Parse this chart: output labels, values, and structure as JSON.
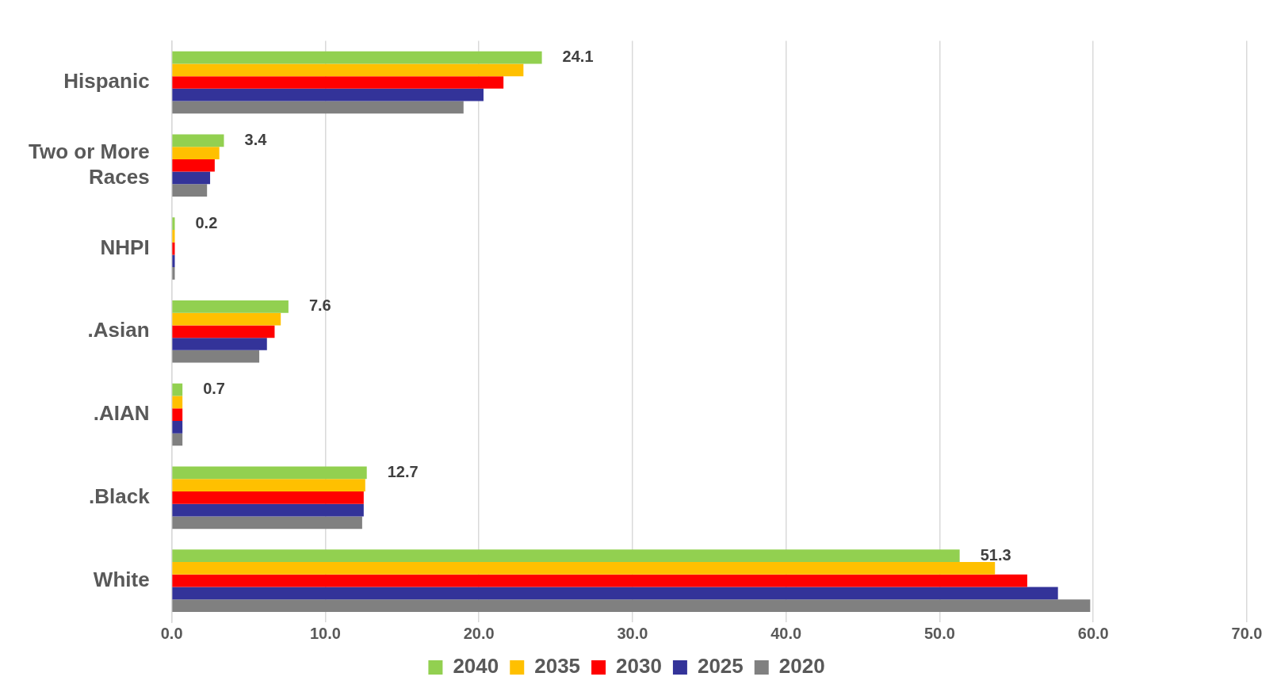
{
  "chart_data": {
    "type": "bar",
    "orientation": "horizontal",
    "categories": [
      "Hispanic",
      "Two or More Races",
      "NHPI",
      ".Asian",
      ".AIAN",
      ".Black",
      "White"
    ],
    "series": [
      {
        "name": "2040",
        "color": "#92d050",
        "values": [
          24.1,
          3.4,
          0.2,
          7.6,
          0.7,
          12.7,
          51.3
        ],
        "value_labels": [
          "24.1",
          "3.4",
          "0.2",
          "7.6",
          "0.7",
          "12.7",
          "51.3"
        ]
      },
      {
        "name": "2035",
        "color": "#ffc000",
        "values": [
          22.9,
          3.1,
          0.2,
          7.1,
          0.7,
          12.6,
          53.6
        ]
      },
      {
        "name": "2030",
        "color": "#ff0000",
        "values": [
          21.6,
          2.8,
          0.2,
          6.7,
          0.7,
          12.5,
          55.7
        ]
      },
      {
        "name": "2025",
        "color": "#333399",
        "values": [
          20.3,
          2.5,
          0.2,
          6.2,
          0.7,
          12.5,
          57.7
        ]
      },
      {
        "name": "2020",
        "color": "#808080",
        "values": [
          19.0,
          2.3,
          0.2,
          5.7,
          0.7,
          12.4,
          59.8
        ]
      }
    ],
    "xlim": [
      0,
      70
    ],
    "xticks": [
      {
        "value": 0,
        "label": "0.0"
      },
      {
        "value": 10,
        "label": "10.0"
      },
      {
        "value": 20,
        "label": "20.0"
      },
      {
        "value": 30,
        "label": "30.0"
      },
      {
        "value": 40,
        "label": "40.0"
      },
      {
        "value": 50,
        "label": "50.0"
      },
      {
        "value": 60,
        "label": "60.0"
      },
      {
        "value": 70,
        "label": "70.0"
      }
    ],
    "grid": "x",
    "legend": "bottom"
  }
}
